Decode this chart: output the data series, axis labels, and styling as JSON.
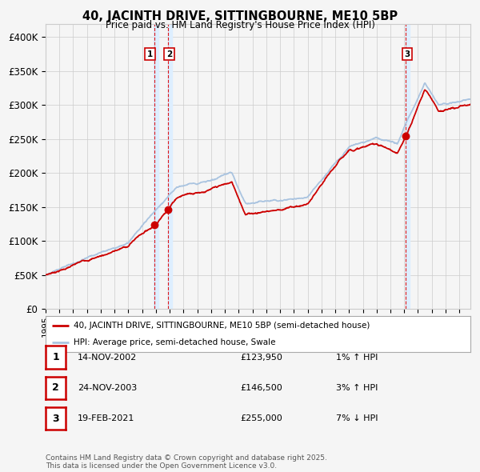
{
  "title": "40, JACINTH DRIVE, SITTINGBOURNE, ME10 5BP",
  "subtitle": "Price paid vs. HM Land Registry's House Price Index (HPI)",
  "transactions": [
    {
      "num": 1,
      "date": "14-NOV-2002",
      "date_x": 2002.87,
      "price": 123950,
      "pct": "1%",
      "dir": "↑"
    },
    {
      "num": 2,
      "date": "24-NOV-2003",
      "date_x": 2003.9,
      "price": 146500,
      "pct": "3%",
      "dir": "↑"
    },
    {
      "num": 3,
      "date": "19-FEB-2021",
      "date_x": 2021.13,
      "price": 255000,
      "pct": "7%",
      "dir": "↓"
    }
  ],
  "legend_line1": "40, JACINTH DRIVE, SITTINGBOURNE, ME10 5BP (semi-detached house)",
  "legend_line2": "HPI: Average price, semi-detached house, Swale",
  "footer": "Contains HM Land Registry data © Crown copyright and database right 2025.\nThis data is licensed under the Open Government Licence v3.0.",
  "ylim": [
    0,
    420000
  ],
  "yticks": [
    0,
    50000,
    100000,
    150000,
    200000,
    250000,
    300000,
    350000,
    400000
  ],
  "ytick_labels": [
    "£0",
    "£50K",
    "£100K",
    "£150K",
    "£200K",
    "£250K",
    "£300K",
    "£350K",
    "£400K"
  ],
  "xlim_start": 1995.0,
  "xlim_end": 2025.8,
  "hpi_color": "#aac4e0",
  "price_color": "#cc0000",
  "vline_color": "#dd0000",
  "highlight_color": "#ddeeff",
  "background_color": "#f5f5f5",
  "grid_color": "#cccccc"
}
